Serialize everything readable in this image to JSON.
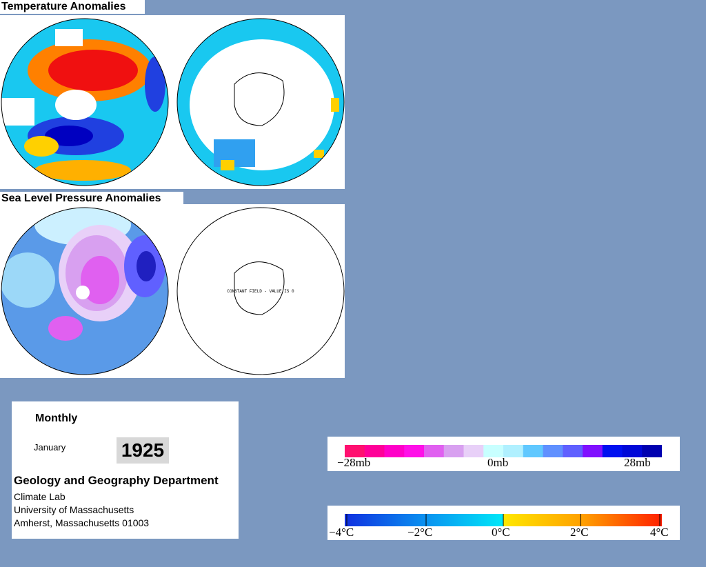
{
  "panels": {
    "temperature": {
      "title": "Temperature Anomalies"
    },
    "pressure": {
      "title": "Sea Level Pressure Anomalies",
      "note": "CONSTANT FIELD - VALUE IS 0"
    }
  },
  "info": {
    "period": "Monthly",
    "month": "January",
    "year": "1925",
    "department": "Geology and Geography Department",
    "lines": [
      "Climate Lab",
      "University of Massachusetts",
      "Amherst, Massachusetts 01003"
    ]
  },
  "legends": {
    "pressure": [
      "−28mb",
      "0mb",
      "28mb"
    ],
    "temperature": [
      "−4°C",
      "−2°C",
      "0°C",
      "2°C",
      "4°C"
    ]
  }
}
